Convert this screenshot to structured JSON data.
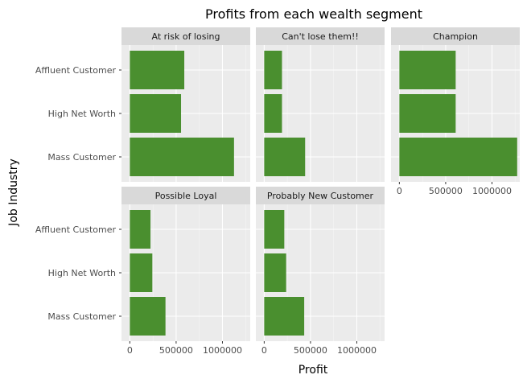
{
  "chart_data": {
    "type": "bar",
    "orientation": "horizontal",
    "title": "Profits from each wealth segment",
    "xlabel": "Profit",
    "ylabel": "Job Industry",
    "categories": [
      "Mass Customer",
      "High Net Worth",
      "Affluent Customer"
    ],
    "xlim": [
      -90000,
      1300000
    ],
    "xticks": [
      0,
      500000,
      1000000
    ],
    "xtick_labels": [
      "0",
      "500000",
      "1000000"
    ],
    "bar_color": "#4a8f2f",
    "panel_background": "#ebebeb",
    "strip_background": "#d9d9d9",
    "grid": true,
    "facets": [
      {
        "label": "At risk of losing",
        "values": [
          1125000,
          553000,
          588000
        ]
      },
      {
        "label": "Can't lose them!!",
        "values": [
          442000,
          192000,
          192000
        ]
      },
      {
        "label": "Champion",
        "values": [
          1272000,
          608000,
          608000
        ]
      },
      {
        "label": "Possible Loyal",
        "values": [
          385000,
          243000,
          223000
        ]
      },
      {
        "label": "Probably New Customer",
        "values": [
          432000,
          237000,
          217000
        ]
      }
    ]
  }
}
